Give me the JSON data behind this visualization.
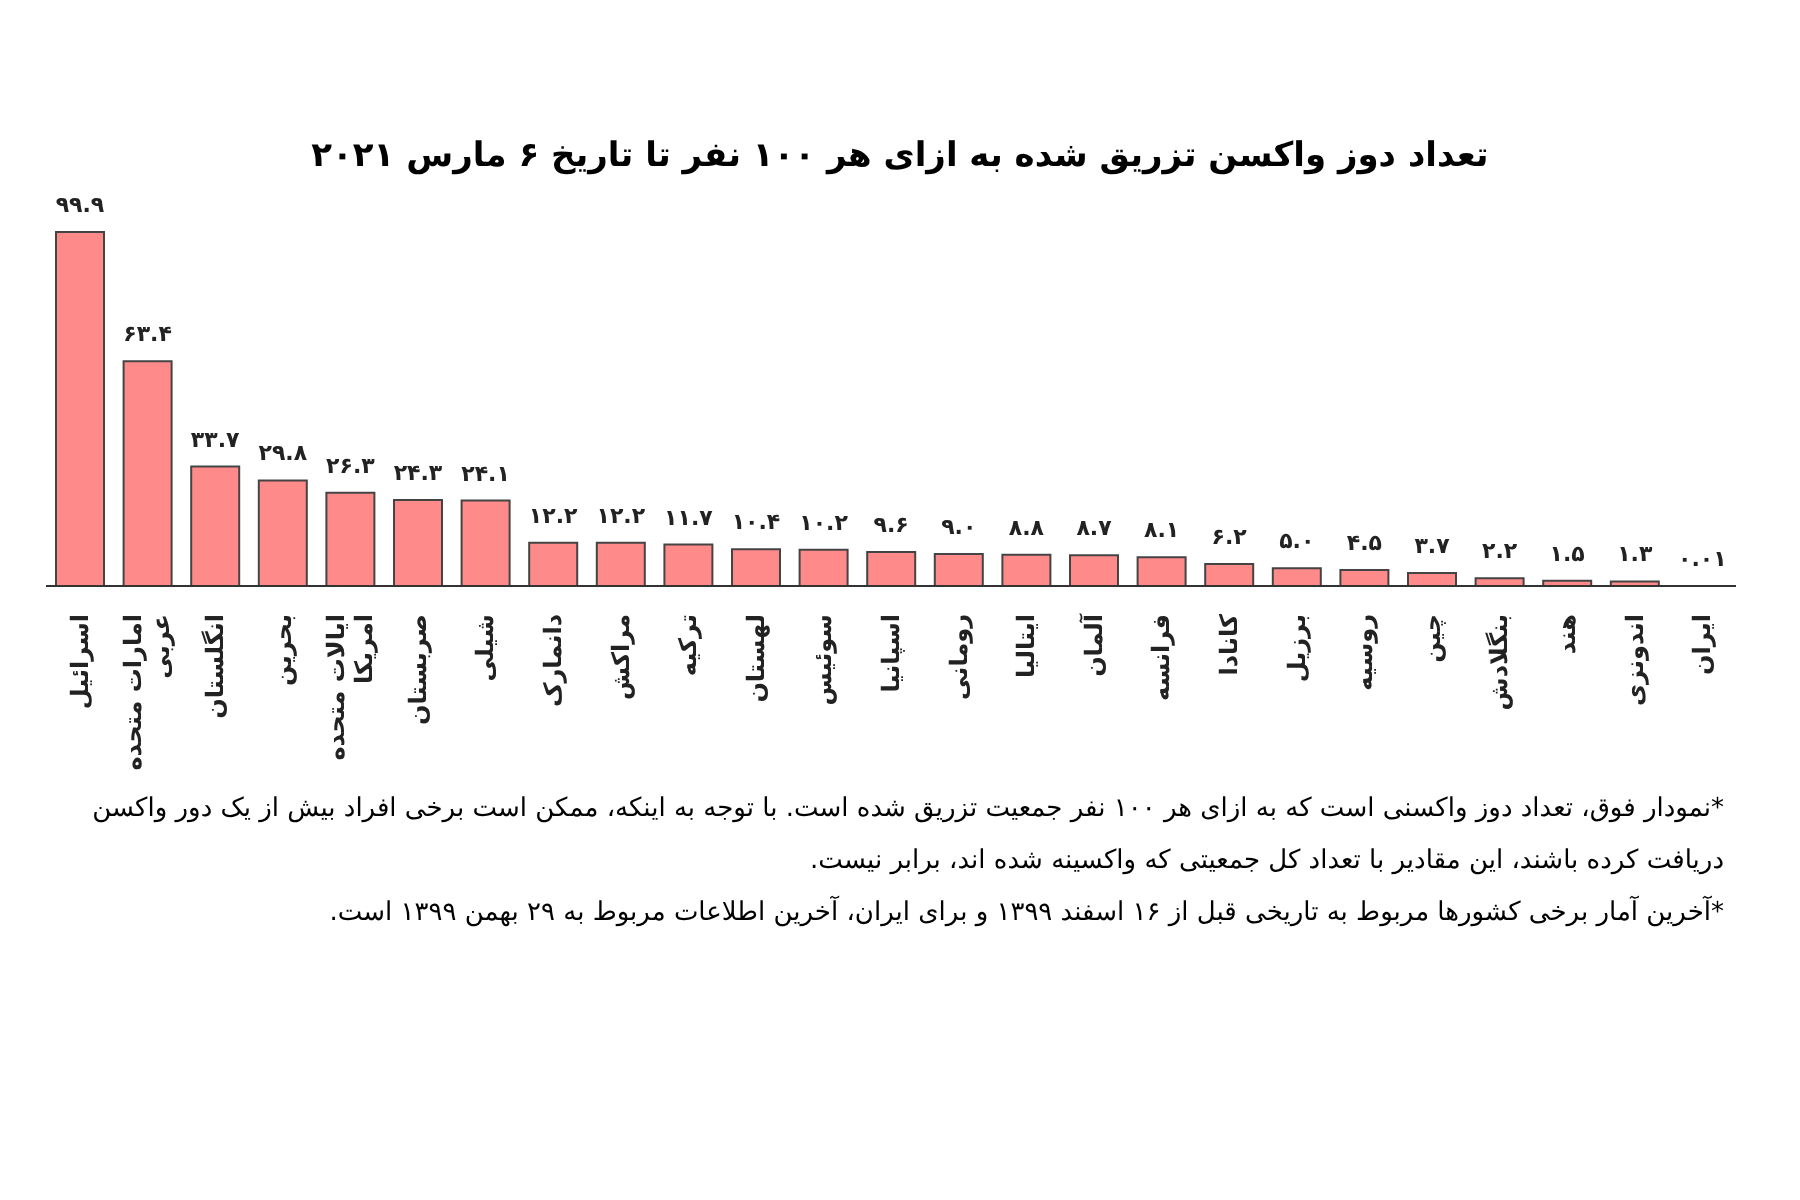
{
  "chart_data": {
    "type": "bar",
    "title": "تعداد دوز واکسن تزریق شده به ازای هر ۱۰۰ نفر تا تاریخ ۶ مارس ۲۰۲۱",
    "categories": [
      "اسرائیل",
      "امارات متحده عربی",
      "انگلستان",
      "بحرین",
      "ایالات متحده امریکا",
      "صربستان",
      "شیلی",
      "دانمارک",
      "مراکش",
      "ترکیه",
      "لهستان",
      "سوئیس",
      "اسپانیا",
      "رومانی",
      "ایتالیا",
      "آلمان",
      "فرانسه",
      "کانادا",
      "برزیل",
      "روسیه",
      "چین",
      "بنگلادش",
      "هند",
      "اندونزی",
      "ایران"
    ],
    "values": [
      99.9,
      63.4,
      33.7,
      29.8,
      26.3,
      24.3,
      24.1,
      12.2,
      12.2,
      11.7,
      10.4,
      10.2,
      9.6,
      9.0,
      8.8,
      8.7,
      8.1,
      6.2,
      5.0,
      4.5,
      3.7,
      2.2,
      1.5,
      1.3,
      0.01
    ],
    "value_labels": [
      "۹۹.۹",
      "۶۳.۴",
      "۳۳.۷",
      "۲۹.۸",
      "۲۶.۳",
      "۲۴.۳",
      "۲۴.۱",
      "۱۲.۲",
      "۱۲.۲",
      "۱۱.۷",
      "۱۰.۴",
      "۱۰.۲",
      "۹.۶",
      "۹.۰",
      "۸.۸",
      "۸.۷",
      "۸.۱",
      "۶.۲",
      "۵.۰",
      "۴.۵",
      "۳.۷",
      "۲.۲",
      "۱.۵",
      "۱.۳",
      "۰.۰۱"
    ],
    "color": "#ff8a8a",
    "annotations": [
      "*نمودار فوق، تعداد دوز واکسنی است که به ازای هر ۱۰۰ نفر جمعیت تزریق شده است. با توجه به اینکه، ممکن است برخی افراد بیش از یک دور واکسن دریافت کرده باشند، این مقادیر با تعداد کل جمعیتی که واکسینه شده اند، برابر نیست.",
      "*آخرین آمار برخی کشورها مربوط به تاریخی قبل از ۱۶ اسفند ۱۳۹۹ و برای ایران، آخرین اطلاعات مربوط به ۲۹ بهمن ۱۳۹۹ است."
    ],
    "grid": false,
    "legend": false
  }
}
